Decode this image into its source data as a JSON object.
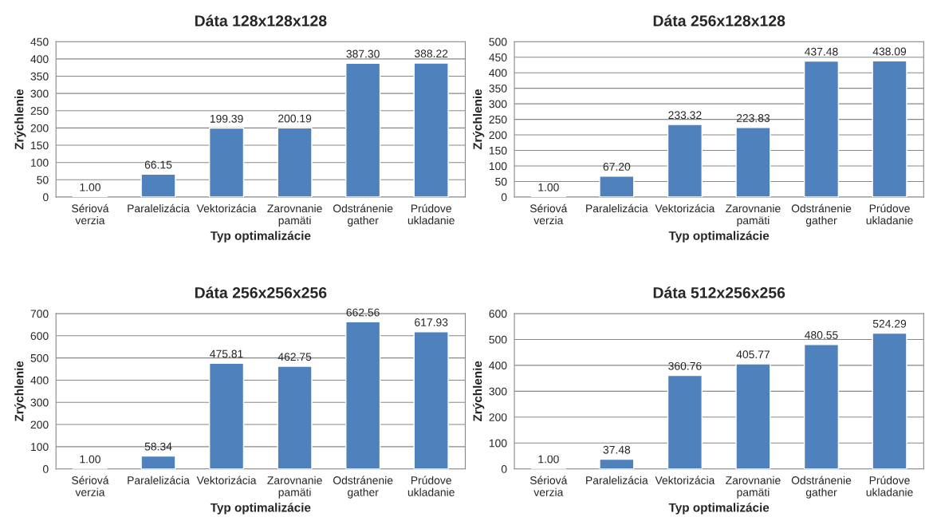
{
  "chart_data": [
    {
      "type": "bar",
      "title": "Dáta 128x128x128",
      "xlabel": "Typ optimalizácie",
      "ylabel": "Zrýchlenie",
      "categories": [
        "Sériová\nverzia",
        "Paralelizácia",
        "Vektorizácia",
        "Zarovnanie\npamäti",
        "Odstránenie\ngather",
        "Prúdove\nukladanie"
      ],
      "values": [
        1.0,
        66.15,
        199.39,
        200.19,
        387.3,
        388.22
      ],
      "value_labels": [
        "1.00",
        "66.15",
        "199.39",
        "200.19",
        "387.30",
        "388.22"
      ],
      "color": "#4f81bd",
      "ylim": [
        0,
        450
      ],
      "yticks": [
        0,
        50,
        100,
        150,
        200,
        250,
        300,
        350,
        400,
        450
      ],
      "grid": "y"
    },
    {
      "type": "bar",
      "title": "Dáta 256x128x128",
      "xlabel": "Typ optimalizácie",
      "ylabel": "Zrýchlenie",
      "categories": [
        "Sériová\nverzia",
        "Paralelizácia",
        "Vektorizácia",
        "Zarovnanie\npamäti",
        "Odstránenie\ngather",
        "Prúdove\nukladanie"
      ],
      "values": [
        1.0,
        67.2,
        233.32,
        223.83,
        437.48,
        438.09
      ],
      "value_labels": [
        "1.00",
        "67.20",
        "233.32",
        "223.83",
        "437.48",
        "438.09"
      ],
      "color": "#4f81bd",
      "ylim": [
        0,
        500
      ],
      "yticks": [
        0,
        50,
        100,
        150,
        200,
        250,
        300,
        350,
        400,
        450,
        500
      ],
      "grid": "y"
    },
    {
      "type": "bar",
      "title": "Dáta 256x256x256",
      "xlabel": "Typ optimalizácie",
      "ylabel": "Zrýchlenie",
      "categories": [
        "Sériová\nverzia",
        "Paralelizácia",
        "Vektorizácia",
        "Zarovnanie\npamäti",
        "Odstránenie\ngather",
        "Prúdove\nukladanie"
      ],
      "values": [
        1.0,
        58.34,
        475.81,
        462.75,
        662.56,
        617.93
      ],
      "value_labels": [
        "1.00",
        "58.34",
        "475.81",
        "462.75",
        "662.56",
        "617.93"
      ],
      "color": "#4f81bd",
      "ylim": [
        0,
        700
      ],
      "yticks": [
        0,
        100,
        200,
        300,
        400,
        500,
        600,
        700
      ],
      "grid": "y"
    },
    {
      "type": "bar",
      "title": "Dáta 512x256x256",
      "xlabel": "Typ optimalizácie",
      "ylabel": "Zrýchlenie",
      "categories": [
        "Sériová\nverzia",
        "Paralelizácia",
        "Vektorizácia",
        "Zarovnanie\npamäti",
        "Odstránenie\ngather",
        "Prúdove\nukladanie"
      ],
      "values": [
        1.0,
        37.48,
        360.76,
        405.77,
        480.55,
        524.29
      ],
      "value_labels": [
        "1.00",
        "37.48",
        "360.76",
        "405.77",
        "480.55",
        "524.29"
      ],
      "color": "#4f81bd",
      "ylim": [
        0,
        600
      ],
      "yticks": [
        0,
        100,
        200,
        300,
        400,
        500,
        600
      ],
      "grid": "y"
    }
  ]
}
